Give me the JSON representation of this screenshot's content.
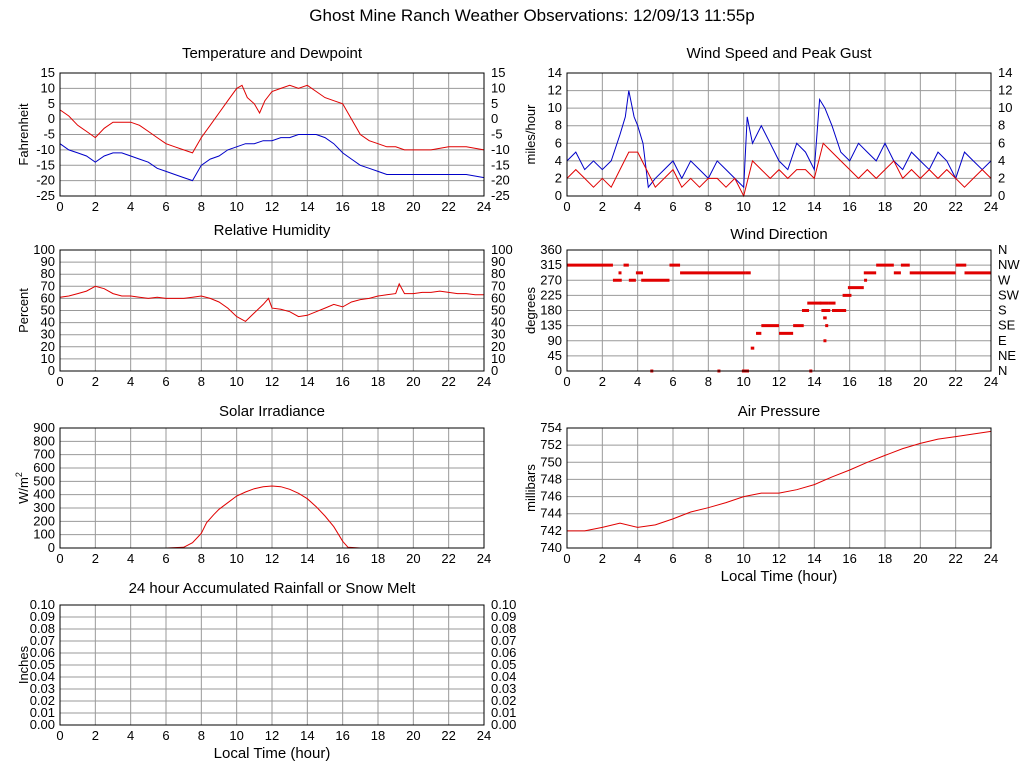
{
  "page": {
    "title": "Ghost Mine Ranch Weather Observations: 12/09/13 11:55p"
  },
  "colors": {
    "red": "#e00000",
    "blue": "#0000c8",
    "grid": "#999999"
  },
  "chart_data": [
    {
      "id": "temperature",
      "type": "line",
      "title": "Temperature and Dewpoint",
      "ylabel": "Fahrenheit",
      "xlabel": "",
      "xlim": [
        0,
        24
      ],
      "ylim": [
        -25,
        15
      ],
      "xticks": [
        0,
        2,
        4,
        6,
        8,
        10,
        12,
        14,
        16,
        18,
        20,
        22,
        24
      ],
      "yticks": [
        -25,
        -20,
        -15,
        -10,
        -5,
        0,
        5,
        10,
        15
      ],
      "right_ticks": [
        "-25",
        "-20",
        "-15",
        "-10",
        "-5",
        "0",
        "5",
        "10",
        "15"
      ],
      "grid": true,
      "series": [
        {
          "color": "red",
          "x": [
            0,
            0.5,
            1,
            1.5,
            2,
            2.5,
            3,
            3.5,
            4,
            4.5,
            5,
            5.5,
            6,
            6.5,
            7,
            7.5,
            8,
            8.5,
            9,
            9.5,
            10,
            10.3,
            10.6,
            11,
            11.3,
            11.6,
            12,
            12.5,
            13,
            13.5,
            14,
            14.5,
            15,
            15.5,
            16,
            16.5,
            17,
            17.5,
            18,
            18.5,
            19,
            19.5,
            20,
            21,
            22,
            23,
            24
          ],
          "y": [
            3,
            1,
            -2,
            -4,
            -6,
            -3,
            -1,
            -1,
            -1,
            -2,
            -4,
            -6,
            -8,
            -9,
            -10,
            -11,
            -6,
            -2,
            2,
            6,
            10,
            11,
            7,
            5,
            2,
            6,
            9,
            10,
            11,
            10,
            11,
            9,
            7,
            6,
            5,
            0,
            -5,
            -7,
            -8,
            -9,
            -9,
            -10,
            -10,
            -10,
            -9,
            -9,
            -10
          ]
        },
        {
          "color": "blue",
          "x": [
            0,
            0.5,
            1,
            1.5,
            2,
            2.5,
            3,
            3.5,
            4,
            4.5,
            5,
            5.5,
            6,
            6.5,
            7,
            7.5,
            8,
            8.5,
            9,
            9.5,
            10,
            10.5,
            11,
            11.5,
            12,
            12.5,
            13,
            13.5,
            14,
            14.5,
            15,
            15.5,
            16,
            16.5,
            17,
            17.5,
            18,
            18.5,
            19,
            20,
            21,
            22,
            23,
            24
          ],
          "y": [
            -8,
            -10,
            -11,
            -12,
            -14,
            -12,
            -11,
            -11,
            -12,
            -13,
            -14,
            -16,
            -17,
            -18,
            -19,
            -20,
            -15,
            -13,
            -12,
            -10,
            -9,
            -8,
            -8,
            -7,
            -7,
            -6,
            -6,
            -5,
            -5,
            -5,
            -6,
            -8,
            -11,
            -13,
            -15,
            -16,
            -17,
            -18,
            -18,
            -18,
            -18,
            -18,
            -18,
            -19
          ]
        }
      ]
    },
    {
      "id": "wind-speed",
      "type": "line",
      "title": "Wind Speed and Peak Gust",
      "ylabel": "miles/hour",
      "xlabel": "",
      "xlim": [
        0,
        24
      ],
      "ylim": [
        0,
        14
      ],
      "xticks": [
        0,
        2,
        4,
        6,
        8,
        10,
        12,
        14,
        16,
        18,
        20,
        22,
        24
      ],
      "yticks": [
        0,
        2,
        4,
        6,
        8,
        10,
        12,
        14
      ],
      "right_ticks": [
        "0",
        "2",
        "4",
        "6",
        "8",
        "10",
        "12",
        "14"
      ],
      "grid": true,
      "series": [
        {
          "color": "blue",
          "x": [
            0,
            0.5,
            1,
            1.5,
            2,
            2.5,
            3,
            3.3,
            3.5,
            3.8,
            4,
            4.3,
            4.6,
            5,
            5.5,
            6,
            6.5,
            7,
            7.5,
            8,
            8.5,
            9,
            9.5,
            10,
            10.2,
            10.5,
            11,
            11.5,
            12,
            12.5,
            13,
            13.5,
            14,
            14.3,
            14.6,
            15,
            15.5,
            16,
            16.5,
            17,
            17.5,
            18,
            18.5,
            19,
            19.5,
            20,
            20.5,
            21,
            21.5,
            22,
            22.5,
            23,
            23.5,
            24
          ],
          "y": [
            4,
            5,
            3,
            4,
            3,
            4,
            7,
            9,
            12,
            9,
            8,
            6,
            1,
            2,
            3,
            4,
            2,
            4,
            3,
            2,
            4,
            3,
            2,
            1,
            9,
            6,
            8,
            6,
            4,
            3,
            6,
            5,
            3,
            11,
            10,
            8,
            5,
            4,
            6,
            5,
            4,
            6,
            4,
            3,
            5,
            4,
            3,
            5,
            4,
            2,
            5,
            4,
            3,
            4
          ]
        },
        {
          "color": "red",
          "x": [
            0,
            0.5,
            1,
            1.5,
            2,
            2.5,
            3,
            3.5,
            4,
            4.5,
            5,
            5.5,
            6,
            6.5,
            7,
            7.5,
            8,
            8.5,
            9,
            9.5,
            10,
            10.5,
            11,
            11.5,
            12,
            12.5,
            13,
            13.5,
            14,
            14.5,
            15,
            15.5,
            16,
            16.5,
            17,
            17.5,
            18,
            18.5,
            19,
            19.5,
            20,
            20.5,
            21,
            21.5,
            22,
            22.5,
            23,
            23.5,
            24
          ],
          "y": [
            2,
            3,
            2,
            1,
            2,
            1,
            3,
            5,
            5,
            3,
            1,
            2,
            3,
            1,
            2,
            1,
            2,
            2,
            1,
            2,
            0,
            4,
            3,
            2,
            3,
            2,
            3,
            3,
            2,
            6,
            5,
            4,
            3,
            2,
            3,
            2,
            3,
            4,
            2,
            3,
            2,
            3,
            2,
            3,
            2,
            1,
            2,
            3,
            2
          ]
        }
      ]
    },
    {
      "id": "humidity",
      "type": "line",
      "title": "Relative Humidity",
      "ylabel": "Percent",
      "xlabel": "",
      "xlim": [
        0,
        24
      ],
      "ylim": [
        0,
        100
      ],
      "xticks": [
        0,
        2,
        4,
        6,
        8,
        10,
        12,
        14,
        16,
        18,
        20,
        22,
        24
      ],
      "yticks": [
        0,
        10,
        20,
        30,
        40,
        50,
        60,
        70,
        80,
        90,
        100
      ],
      "right_ticks": [
        "0",
        "10",
        "20",
        "30",
        "40",
        "50",
        "60",
        "70",
        "80",
        "90",
        "100"
      ],
      "grid": true,
      "series": [
        {
          "color": "red",
          "x": [
            0,
            0.5,
            1,
            1.5,
            2,
            2.5,
            3,
            3.5,
            4,
            4.5,
            5,
            5.5,
            6,
            6.5,
            7,
            7.5,
            8,
            8.5,
            9,
            9.5,
            10,
            10.5,
            11,
            11.5,
            11.8,
            12,
            12.5,
            13,
            13.5,
            14,
            14.5,
            15,
            15.5,
            16,
            16.5,
            17,
            17.5,
            18,
            18.5,
            19,
            19.2,
            19.5,
            20,
            20.5,
            21,
            21.5,
            22,
            22.5,
            23,
            23.5,
            24
          ],
          "y": [
            61,
            62,
            64,
            66,
            70,
            68,
            64,
            62,
            62,
            61,
            60,
            61,
            60,
            60,
            60,
            61,
            62,
            60,
            57,
            52,
            45,
            41,
            48,
            55,
            60,
            52,
            51,
            49,
            45,
            46,
            49,
            52,
            55,
            53,
            57,
            59,
            60,
            62,
            63,
            64,
            72,
            64,
            64,
            65,
            65,
            66,
            65,
            64,
            64,
            63,
            63
          ]
        }
      ]
    },
    {
      "id": "wind-direction",
      "type": "scatter",
      "title": "Wind Direction",
      "ylabel": "degrees",
      "xlabel": "",
      "xlim": [
        0,
        24
      ],
      "ylim": [
        0,
        360
      ],
      "xticks": [
        0,
        2,
        4,
        6,
        8,
        10,
        12,
        14,
        16,
        18,
        20,
        22,
        24
      ],
      "yticks": [
        0,
        45,
        90,
        135,
        180,
        225,
        270,
        315,
        360
      ],
      "right_ticks": [
        "N",
        "NE",
        "E",
        "SE",
        "S",
        "SW",
        "W",
        "NW",
        "N"
      ],
      "grid": true,
      "series": [
        {
          "color": "red",
          "mode": "segments",
          "segments": [
            [
              0,
              2.6,
              315
            ],
            [
              2.6,
              3.1,
              270
            ],
            [
              3.2,
              3.5,
              315
            ],
            [
              3.5,
              3.9,
              270
            ],
            [
              3.9,
              4.3,
              292
            ],
            [
              4.2,
              5.8,
              270
            ],
            [
              5.8,
              6.4,
              315
            ],
            [
              6.4,
              10.1,
              292
            ],
            [
              10.1,
              10.4,
              292
            ],
            [
              9.9,
              10.3,
              0
            ],
            [
              10.4,
              10.6,
              68
            ],
            [
              10.7,
              11.0,
              112
            ],
            [
              11.0,
              12.0,
              135
            ],
            [
              12.0,
              12.8,
              112
            ],
            [
              12.8,
              13.4,
              135
            ],
            [
              13.3,
              13.7,
              180
            ],
            [
              13.6,
              14.4,
              202
            ],
            [
              14.3,
              14.8,
              202
            ],
            [
              14.4,
              14.9,
              180
            ],
            [
              14.5,
              14.7,
              158
            ],
            [
              14.8,
              15.2,
              202
            ],
            [
              15.0,
              15.8,
              180
            ],
            [
              15.6,
              16.1,
              225
            ],
            [
              15.9,
              16.8,
              248
            ],
            [
              16.8,
              17.5,
              292
            ],
            [
              17.5,
              18.5,
              315
            ],
            [
              18.5,
              18.9,
              292
            ],
            [
              18.9,
              19.4,
              315
            ],
            [
              19.4,
              22.0,
              292
            ],
            [
              22.0,
              22.6,
              315
            ],
            [
              22.5,
              24.0,
              292
            ]
          ],
          "points": [
            [
              4.8,
              0
            ],
            [
              8.6,
              0
            ],
            [
              13.8,
              0
            ],
            [
              14.6,
              90
            ],
            [
              14.7,
              135
            ],
            [
              16.9,
              270
            ],
            [
              3.0,
              292
            ]
          ]
        }
      ]
    },
    {
      "id": "solar",
      "type": "area",
      "title": "Solar Irradiance",
      "ylabel": "W/m",
      "ylabel_sup": "2",
      "xlabel": "",
      "xlim": [
        0,
        24
      ],
      "ylim": [
        0,
        900
      ],
      "xticks": [
        0,
        2,
        4,
        6,
        8,
        10,
        12,
        14,
        16,
        18,
        20,
        22,
        24
      ],
      "yticks": [
        0,
        100,
        200,
        300,
        400,
        500,
        600,
        700,
        800,
        900
      ],
      "grid": true,
      "series": [
        {
          "color": "red",
          "x": [
            0,
            6,
            7,
            7.5,
            8,
            8.3,
            8.7,
            9,
            9.5,
            10,
            10.5,
            11,
            11.5,
            12,
            12.5,
            13,
            13.5,
            14,
            14.5,
            15,
            15.5,
            16,
            16.3,
            17,
            24
          ],
          "y": [
            0,
            0,
            5,
            40,
            110,
            190,
            250,
            290,
            340,
            390,
            420,
            445,
            460,
            465,
            460,
            440,
            410,
            370,
            310,
            240,
            160,
            50,
            5,
            0,
            0
          ]
        }
      ]
    },
    {
      "id": "pressure",
      "type": "line",
      "title": "Air Pressure",
      "ylabel": "millibars",
      "xlabel": "Local Time (hour)",
      "xlim": [
        0,
        24
      ],
      "ylim": [
        740,
        754
      ],
      "xticks": [
        0,
        2,
        4,
        6,
        8,
        10,
        12,
        14,
        16,
        18,
        20,
        22,
        24
      ],
      "yticks": [
        740,
        742,
        744,
        746,
        748,
        750,
        752,
        754
      ],
      "grid": true,
      "series": [
        {
          "color": "red",
          "x": [
            0,
            1,
            2,
            3,
            4,
            5,
            6,
            7,
            8,
            9,
            10,
            11,
            12,
            13,
            14,
            15,
            16,
            17,
            18,
            19,
            20,
            21,
            22,
            23,
            24
          ],
          "y": [
            742,
            742,
            742.4,
            742.9,
            742.4,
            742.7,
            743.4,
            744.2,
            744.7,
            745.3,
            746,
            746.4,
            746.4,
            746.8,
            747.4,
            748.3,
            749.1,
            750,
            750.8,
            751.6,
            752.2,
            752.7,
            753,
            753.3,
            753.6
          ]
        }
      ]
    },
    {
      "id": "rainfall",
      "type": "line",
      "title": "24 hour Accumulated Rainfall or Snow Melt",
      "ylabel": "Inches",
      "xlabel": "Local Time (hour)",
      "xlim": [
        0,
        24
      ],
      "ylim": [
        0,
        0.1
      ],
      "xticks": [
        0,
        2,
        4,
        6,
        8,
        10,
        12,
        14,
        16,
        18,
        20,
        22,
        24
      ],
      "yticks": [
        "0.00",
        "0.01",
        "0.02",
        "0.03",
        "0.04",
        "0.05",
        "0.06",
        "0.07",
        "0.08",
        "0.09",
        "0.10"
      ],
      "right_ticks": [
        "0.00",
        "0.01",
        "0.02",
        "0.03",
        "0.04",
        "0.05",
        "0.06",
        "0.07",
        "0.08",
        "0.09",
        "0.10"
      ],
      "grid": true,
      "series": [
        {
          "color": "red",
          "x": [
            0,
            24
          ],
          "y": [
            0,
            0
          ]
        }
      ]
    }
  ]
}
